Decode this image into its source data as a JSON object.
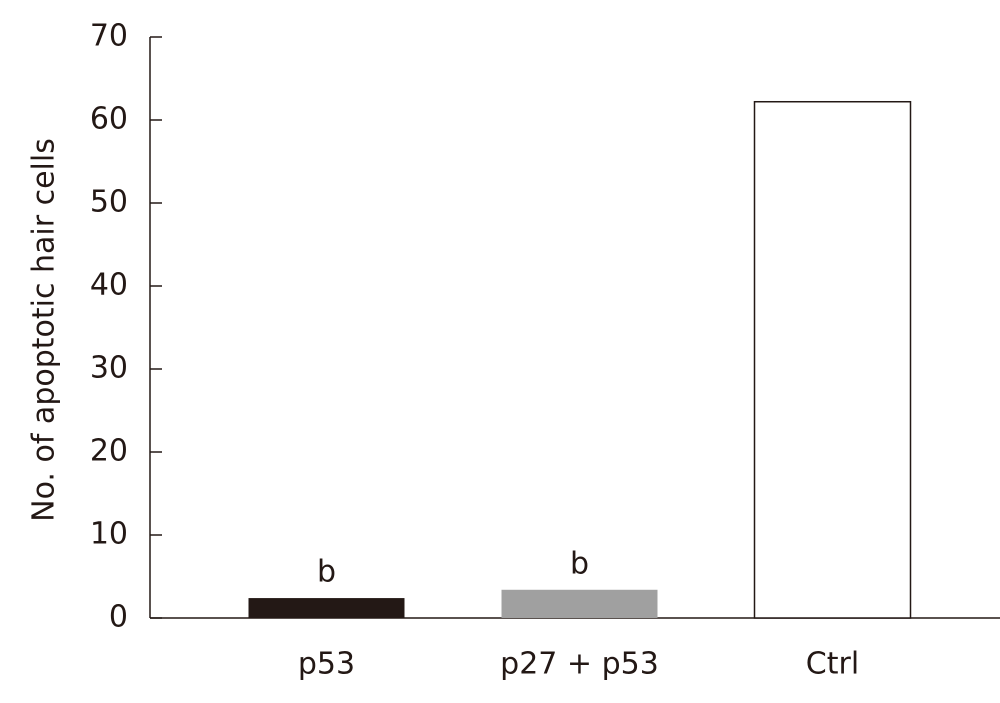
{
  "chart_data": {
    "type": "bar",
    "ylabel": "No. of apoptotic hair cells",
    "categories": [
      "p53",
      "p27 + p53",
      "Ctrl"
    ],
    "values": [
      2.4,
      3.4,
      62.2
    ],
    "colors": [
      "#231815",
      "#a0a0a0",
      "#ffffff"
    ],
    "annotations": [
      "b",
      "b",
      null
    ],
    "ylim": [
      0,
      70
    ],
    "yticks": [
      0,
      10,
      20,
      30,
      40,
      50,
      60,
      70
    ]
  }
}
